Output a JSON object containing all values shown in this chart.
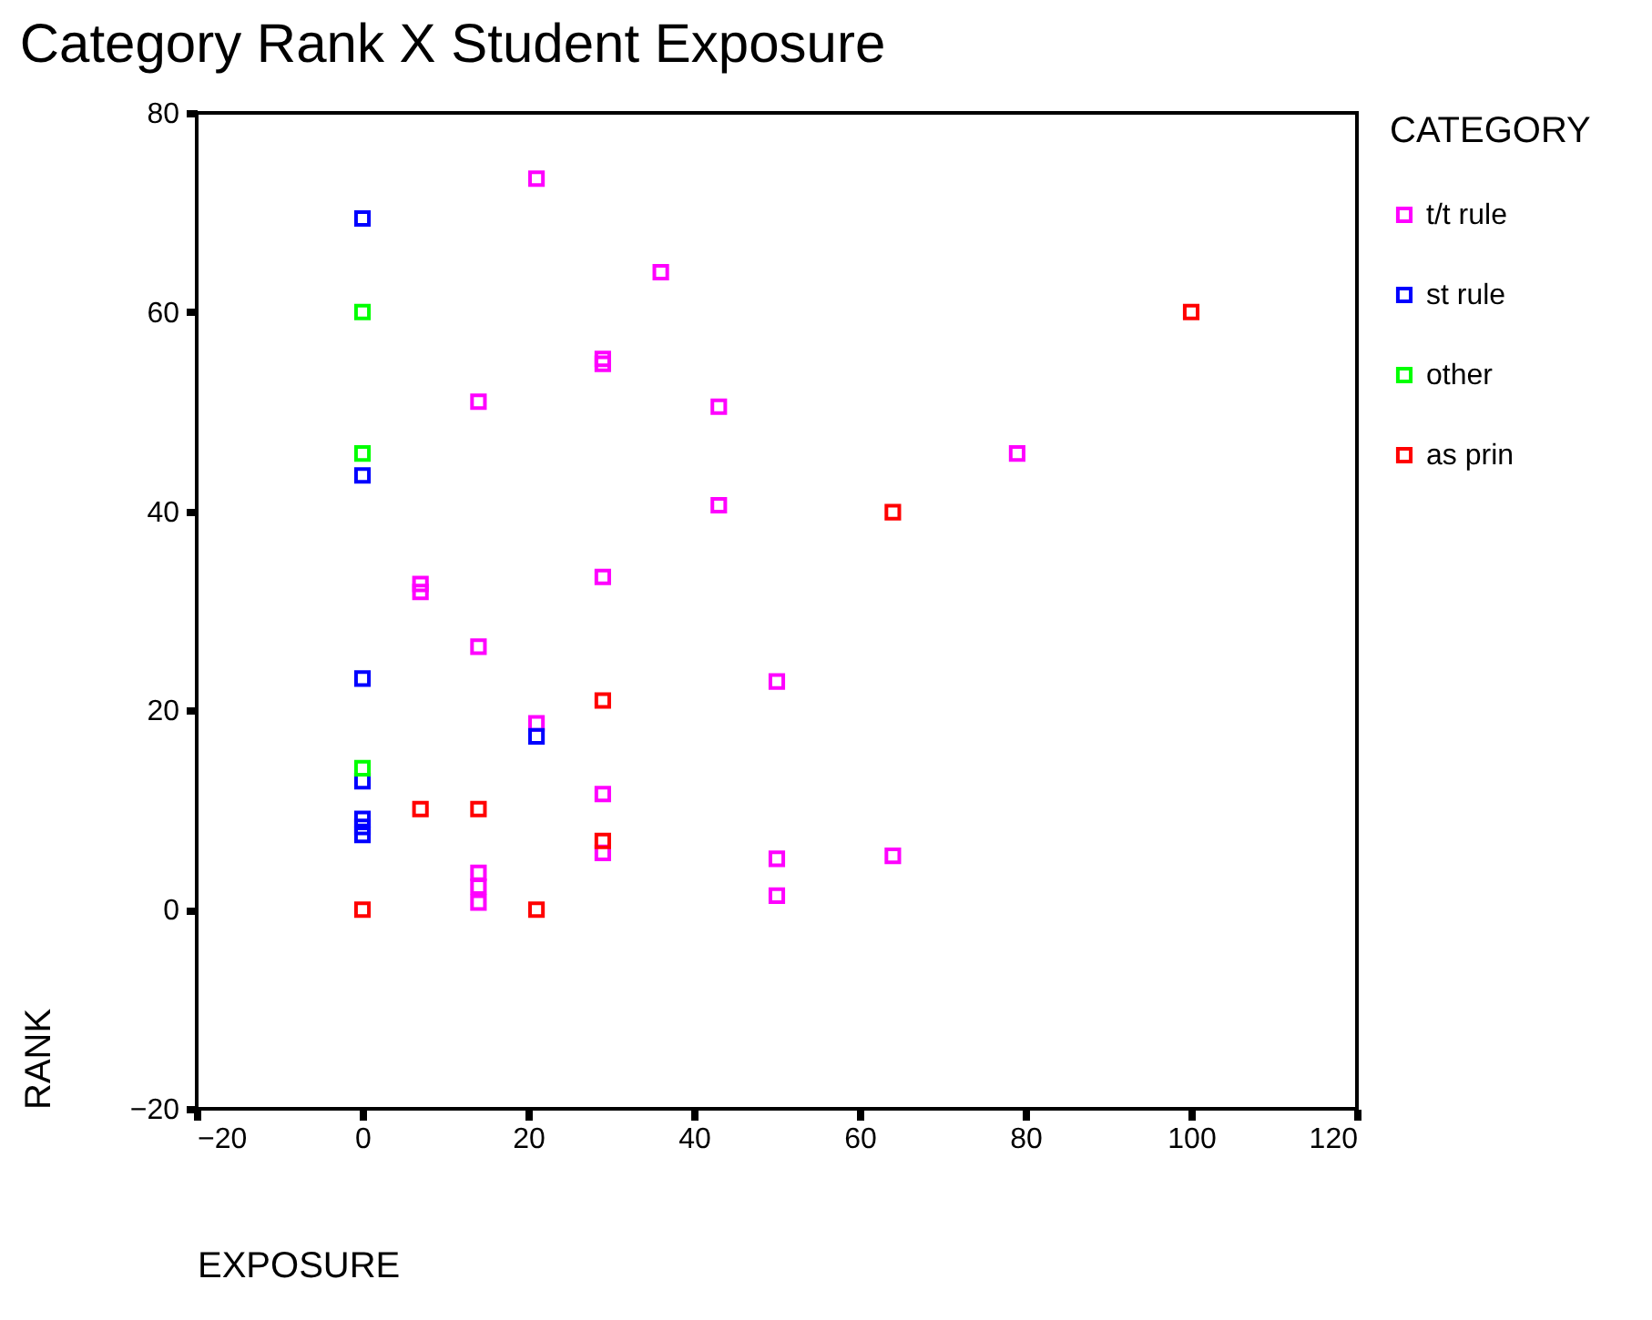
{
  "chart_data": {
    "type": "scatter",
    "title": "Category Rank X Student Exposure",
    "xlabel": "EXPOSURE",
    "ylabel": "RANK",
    "legend_title": "CATEGORY",
    "xlim": [
      -20,
      120
    ],
    "xticks": [
      -20,
      0,
      20,
      40,
      60,
      80,
      100,
      120
    ],
    "ylim": [
      -20,
      80
    ],
    "yticks": [
      -20,
      0,
      20,
      40,
      60,
      80
    ],
    "grid": false,
    "legend": "right",
    "marker": "square",
    "series": [
      {
        "name": "t/t rule",
        "color": "#ff00ff",
        "x": [
          21,
          36,
          29,
          29,
          14,
          43,
          43,
          29,
          7,
          7,
          14,
          50,
          21,
          29,
          29,
          50,
          50,
          14,
          14,
          14,
          79,
          64
        ],
        "values": [
          73.4,
          64,
          55.3,
          54.8,
          51,
          50.5,
          40.6,
          33.4,
          32.7,
          31.9,
          26.4,
          22.9,
          18.7,
          11.6,
          5.7,
          5.1,
          1.4,
          3.7,
          2.3,
          0.7,
          45.8,
          5.4
        ]
      },
      {
        "name": "st rule",
        "color": "#0000ff",
        "x": [
          0,
          0,
          0,
          21,
          0,
          0,
          0,
          0
        ],
        "values": [
          69.4,
          43.6,
          23.2,
          17.4,
          12.9,
          9.1,
          8.3,
          7.5
        ]
      },
      {
        "name": "other",
        "color": "#00ff00",
        "x": [
          0,
          0,
          0
        ],
        "values": [
          60,
          45.8,
          14.2
        ]
      },
      {
        "name": "as prin",
        "color": "#ff0000",
        "x": [
          100,
          64,
          29,
          7,
          14,
          29,
          0,
          21
        ],
        "values": [
          60,
          39.9,
          21,
          10.1,
          10.1,
          6.9,
          0,
          0
        ]
      }
    ]
  }
}
